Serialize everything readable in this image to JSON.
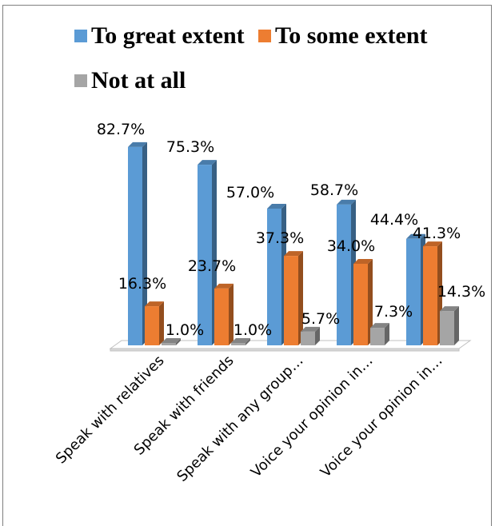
{
  "chart_data": {
    "type": "bar",
    "categories": [
      "Speak with relatives",
      "Speak with friends",
      "Speak with any group…",
      "Voice your opinion in…",
      "Voice your opinion in…"
    ],
    "series": [
      {
        "name": "To great extent",
        "values": [
          82.7,
          75.3,
          57.0,
          58.7,
          44.4
        ],
        "labels": [
          "82.7%",
          "75.3%",
          "57.0%",
          "58.7%",
          "44.4%"
        ],
        "color": "#5b9bd5"
      },
      {
        "name": "To some extent",
        "values": [
          16.3,
          23.7,
          37.3,
          34.0,
          41.3
        ],
        "labels": [
          "16.3%",
          "23.7%",
          "37.3%",
          "34.0%",
          "41.3%"
        ],
        "color": "#ed7d31"
      },
      {
        "name": "Not at all",
        "values": [
          1.0,
          1.0,
          5.7,
          7.3,
          14.3
        ],
        "labels": [
          "1.0%",
          "1.0%",
          "5.7%",
          "7.3%",
          "14.3%"
        ],
        "color": "#a5a5a5"
      }
    ],
    "ylim": [
      0,
      100
    ],
    "grid": false,
    "legend_position": "top",
    "style": "3d-clustered"
  }
}
